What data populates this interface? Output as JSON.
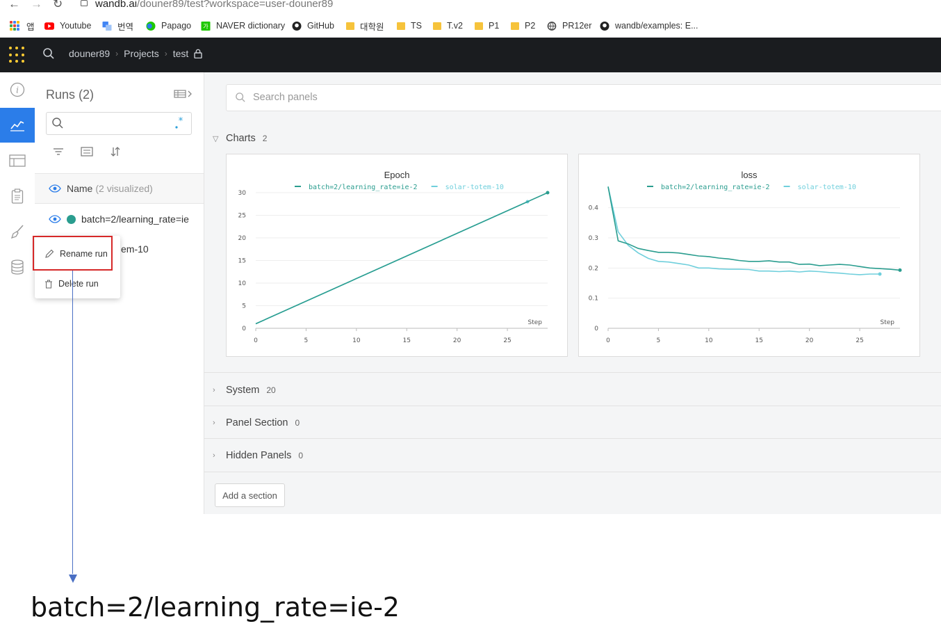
{
  "browser": {
    "url_host": "wandb.ai",
    "url_path": "/douner89/test?workspace=user-douner89",
    "bookmarks": [
      {
        "label": "앱",
        "icon": "apps-grid-icon"
      },
      {
        "label": "Youtube",
        "icon": "youtube-icon"
      },
      {
        "label": "번역",
        "icon": "translate-icon"
      },
      {
        "label": "Papago",
        "icon": "papago-icon"
      },
      {
        "label": "NAVER dictionary",
        "icon": "naver-icon"
      },
      {
        "label": "GitHub",
        "icon": "github-icon"
      },
      {
        "label": "대학원",
        "icon": "folder-icon"
      },
      {
        "label": "TS",
        "icon": "folder-icon"
      },
      {
        "label": "T.v2",
        "icon": "folder-icon"
      },
      {
        "label": "P1",
        "icon": "folder-icon"
      },
      {
        "label": "P2",
        "icon": "folder-icon"
      },
      {
        "label": "PR12er",
        "icon": "globe-icon"
      },
      {
        "label": "wandb/examples: E...",
        "icon": "github-icon"
      }
    ]
  },
  "topbar": {
    "crumbs": [
      "douner89",
      "Projects",
      "test"
    ]
  },
  "runs_panel": {
    "title": "Runs (2)",
    "header_label": "Name",
    "header_sub": "(2 visualized)",
    "runs": [
      {
        "name": "batch=2/learning_rate=ie",
        "color": "#2a9d8f"
      },
      {
        "name": "em-10",
        "color": "#5bc0d6"
      }
    ],
    "context_menu": {
      "rename": "Rename run",
      "delete": "Delete run"
    }
  },
  "main": {
    "search_placeholder": "Search panels",
    "sections": [
      {
        "label": "Charts",
        "count": "2"
      },
      {
        "label": "System",
        "count": "20"
      },
      {
        "label": "Panel Section",
        "count": "0"
      },
      {
        "label": "Hidden Panels",
        "count": "0"
      }
    ],
    "add_section": "Add a section"
  },
  "annotation": {
    "text": "batch=2/learning_rate=ie-2"
  },
  "colors": {
    "series1": "#2a9d8f",
    "series2": "#6fcfdc",
    "accent": "#2b7de9",
    "highlight": "#d62828"
  },
  "chart_data": [
    {
      "type": "line",
      "title": "Epoch",
      "xlabel": "Step",
      "xlim": [
        0,
        29
      ],
      "ylim": [
        0,
        30
      ],
      "xticks": [
        0,
        5,
        10,
        15,
        20,
        25
      ],
      "yticks": [
        0,
        5,
        10,
        15,
        20,
        25,
        30
      ],
      "series": [
        {
          "name": "batch=2/learning_rate=ie-2",
          "x": [
            0,
            29
          ],
          "y": [
            1,
            30
          ]
        },
        {
          "name": "solar-totem-10",
          "x": [
            0,
            27
          ],
          "y": [
            1,
            28
          ]
        }
      ]
    },
    {
      "type": "line",
      "title": "loss",
      "xlabel": "Step",
      "xlim": [
        0,
        29
      ],
      "ylim": [
        0,
        0.45
      ],
      "xticks": [
        0,
        5,
        10,
        15,
        20,
        25
      ],
      "yticks": [
        0,
        0.1,
        0.2,
        0.3,
        0.4
      ],
      "ytick_labels": [
        "0",
        "0.1",
        "0.2",
        "0.3",
        "0.4"
      ],
      "series": [
        {
          "name": "batch=2/learning_rate=ie-2",
          "x": [
            0,
            1,
            2,
            3,
            4,
            5,
            6,
            7,
            8,
            9,
            10,
            11,
            12,
            13,
            14,
            15,
            16,
            17,
            18,
            19,
            20,
            21,
            22,
            23,
            24,
            25,
            26,
            27,
            28,
            29
          ],
          "y": [
            0.47,
            0.29,
            0.28,
            0.265,
            0.258,
            0.252,
            0.252,
            0.25,
            0.245,
            0.24,
            0.238,
            0.233,
            0.23,
            0.225,
            0.222,
            0.222,
            0.224,
            0.22,
            0.22,
            0.212,
            0.213,
            0.208,
            0.21,
            0.212,
            0.21,
            0.205,
            0.2,
            0.198,
            0.196,
            0.193
          ]
        },
        {
          "name": "solar-totem-10",
          "x": [
            0,
            1,
            2,
            3,
            4,
            5,
            6,
            7,
            8,
            9,
            10,
            11,
            12,
            13,
            14,
            15,
            16,
            17,
            18,
            19,
            20,
            21,
            22,
            23,
            24,
            25,
            26,
            27
          ],
          "y": [
            0.47,
            0.32,
            0.275,
            0.25,
            0.232,
            0.222,
            0.22,
            0.215,
            0.21,
            0.2,
            0.2,
            0.197,
            0.196,
            0.196,
            0.195,
            0.19,
            0.19,
            0.188,
            0.19,
            0.187,
            0.19,
            0.188,
            0.185,
            0.183,
            0.18,
            0.178,
            0.18,
            0.18
          ]
        }
      ]
    }
  ]
}
